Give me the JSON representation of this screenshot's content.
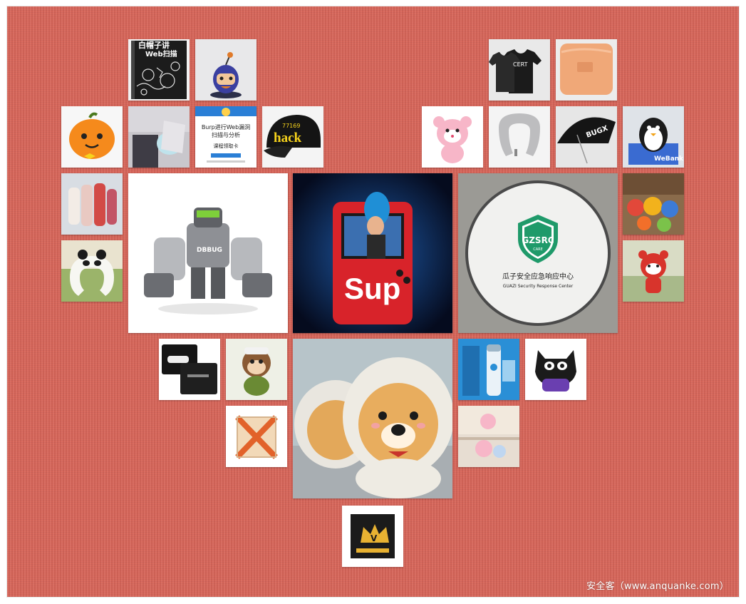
{
  "watermark": "安全客（www.anquanke.com）",
  "tiles": {
    "book": {
      "line1": "白帽子讲",
      "line2": "Web扫描"
    },
    "burp_card": {
      "line1": "Burp进行Web漏洞",
      "line2": "扫描与分析",
      "line3": "课程领取卡"
    },
    "cap": {
      "number": "77169",
      "word": "hack"
    },
    "tshirt": {
      "label": "CERT"
    },
    "umbrella": {
      "label": "BUGX"
    },
    "penguin": {
      "brand": "WeBank"
    },
    "robot": {
      "label": "DBBUG"
    },
    "console": {
      "brand": "Sup"
    },
    "gzsrc": {
      "badge": "GZSRC",
      "badge_sub": "CARE",
      "cn": "瓜子安全应急响应中心",
      "en": "GUAZI Security Response Center"
    },
    "iqiyi": {
      "crown": "V"
    }
  }
}
